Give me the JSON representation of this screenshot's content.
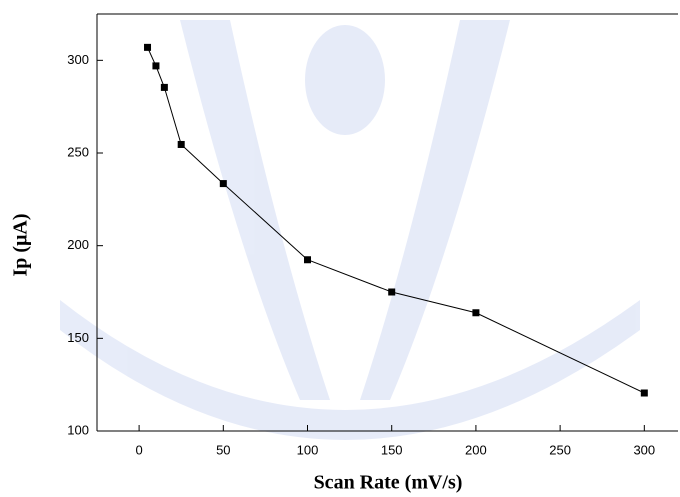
{
  "chart_data": {
    "type": "line",
    "x_label": "Scan Rate (mV/s)",
    "y_label": "Ip (μA)",
    "x": [
      5,
      10,
      15,
      25,
      50,
      100,
      150,
      200,
      300
    ],
    "series": [
      {
        "color": "#000000",
        "values": [
          307,
          297,
          285.4,
          254.6,
          233.5,
          192.4,
          175,
          163.8,
          120.5
        ]
      }
    ],
    "xlim": [
      -25,
      320
    ],
    "xticks": [
      0,
      50,
      100,
      150,
      200,
      250,
      300
    ],
    "ylim": [
      100,
      325
    ],
    "yticks": [
      100,
      150,
      200,
      250,
      300
    ]
  }
}
